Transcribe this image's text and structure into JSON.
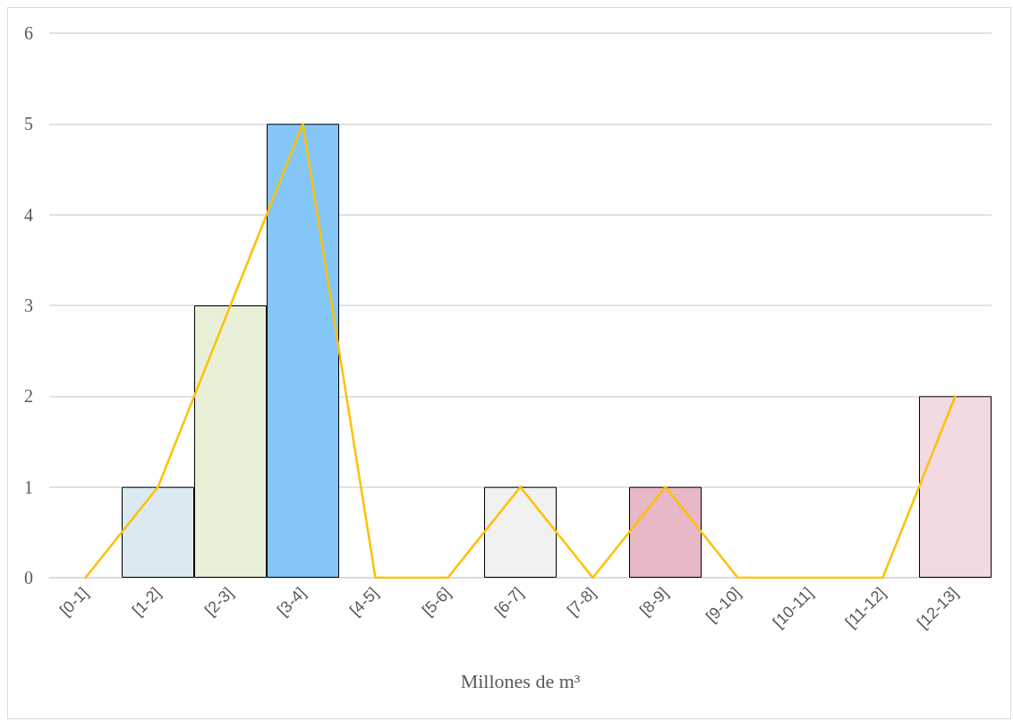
{
  "chart_data": {
    "type": "bar",
    "xlabel": "Millones de m³",
    "categories": [
      "[0-1]",
      "[1-2]",
      "[2-3]",
      "[3-4]",
      "[4-5]",
      "[5-6]",
      "[6-7]",
      "[7-8]",
      "[8-9]",
      "[9-10]",
      "[10-11]",
      "[11-12]",
      "[12-13]"
    ],
    "series": [
      {
        "values": [
          0,
          1,
          3,
          5,
          0,
          0,
          1,
          0,
          1,
          0,
          0,
          0,
          2
        ],
        "colors": [
          null,
          "#daeaf2",
          "#e9f0d8",
          "#84c6f8",
          null,
          null,
          "#f1f1f1",
          null,
          "#e8b8c6",
          null,
          null,
          null,
          "#f2dae2"
        ]
      },
      {
        "type": "line",
        "color": "#ffc000",
        "values": [
          0,
          1,
          3,
          5,
          0,
          0,
          1,
          0,
          1,
          0,
          0,
          0,
          2
        ]
      }
    ],
    "ylim": [
      0,
      6
    ],
    "yticks": [
      0,
      1,
      2,
      3,
      4,
      5,
      6
    ],
    "grid": "y",
    "marker": "none"
  }
}
